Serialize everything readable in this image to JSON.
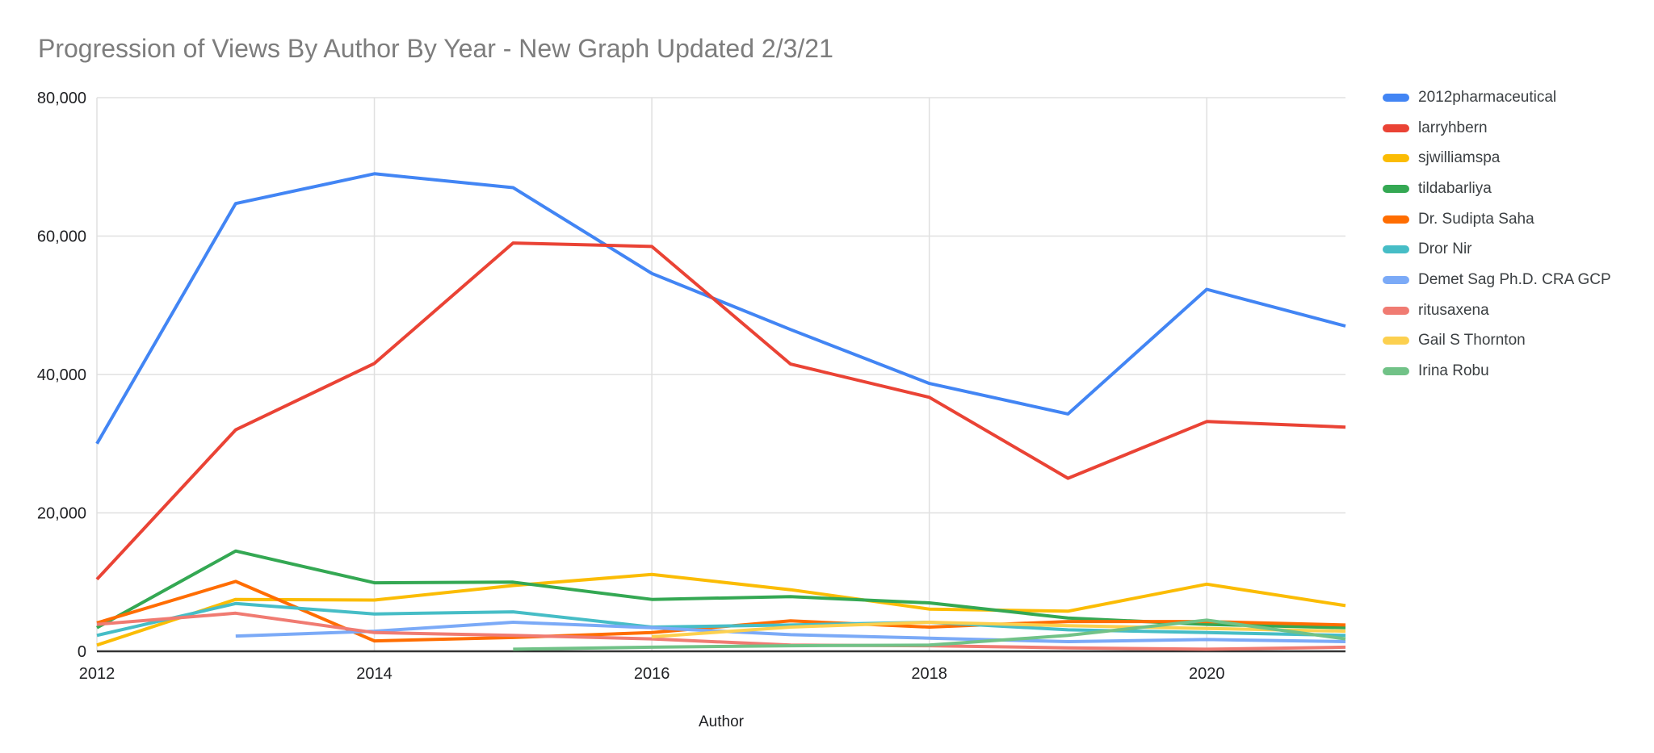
{
  "title": "Progression of Views By Author By Year - New Graph Updated 2/3/21",
  "chart_data": {
    "type": "line",
    "x": [
      2012,
      2013,
      2014,
      2015,
      2016,
      2017,
      2018,
      2019,
      2020,
      2021
    ],
    "xlabel": "Author",
    "ylabel": "",
    "ylim": [
      0,
      80000
    ],
    "yticks": [
      0,
      20000,
      40000,
      60000,
      80000
    ],
    "ytick_labels": [
      "0",
      "20,000",
      "40,000",
      "60,000",
      "80,000"
    ],
    "xticks": [
      2012,
      2014,
      2016,
      2018,
      2020
    ],
    "xtick_labels": [
      "2012",
      "2014",
      "2016",
      "2018",
      "2020"
    ],
    "grid": true,
    "legend_position": "right",
    "series": [
      {
        "name": "2012pharmaceutical",
        "color": "#4285F4",
        "values": [
          30000,
          64700,
          69000,
          67000,
          54600,
          46500,
          38700,
          34300,
          52300,
          47000
        ]
      },
      {
        "name": "larryhbern",
        "color": "#EA4335",
        "values": [
          10400,
          32000,
          41600,
          59000,
          58500,
          41500,
          36700,
          25000,
          33200,
          32400
        ]
      },
      {
        "name": "sjwilliamspa",
        "color": "#FBBC04",
        "values": [
          900,
          7500,
          7400,
          9500,
          11100,
          8900,
          6100,
          5800,
          9700,
          6600
        ]
      },
      {
        "name": "tildabarliya",
        "color": "#34A853",
        "values": [
          3400,
          14500,
          9900,
          10000,
          7500,
          7900,
          7000,
          4800,
          3900,
          3400
        ]
      },
      {
        "name": "Dr. Sudipta Saha",
        "color": "#FF6D01",
        "values": [
          4100,
          10100,
          1500,
          2000,
          2700,
          4400,
          3500,
          4300,
          4300,
          3800
        ]
      },
      {
        "name": "Dror Nir",
        "color": "#46BDC6",
        "values": [
          2300,
          6900,
          5400,
          5700,
          3500,
          3800,
          4200,
          3100,
          2700,
          2300
        ]
      },
      {
        "name": "Demet Sag Ph.D. CRA GCP",
        "color": "#7BAAF7",
        "values": [
          null,
          2200,
          2900,
          4200,
          3400,
          2400,
          1900,
          1400,
          1700,
          1400
        ]
      },
      {
        "name": "ritusaxena",
        "color": "#F07B72",
        "values": [
          3900,
          5500,
          2700,
          2300,
          1800,
          900,
          800,
          500,
          300,
          600
        ]
      },
      {
        "name": "Gail S Thornton",
        "color": "#FCD04F",
        "values": [
          null,
          null,
          null,
          null,
          2100,
          3500,
          4200,
          3700,
          3300,
          2900
        ]
      },
      {
        "name": "Irina Robu",
        "color": "#71C287",
        "values": [
          null,
          null,
          null,
          300,
          600,
          800,
          900,
          2300,
          4500,
          1800
        ]
      }
    ]
  },
  "styles": {
    "gridline_color": "#e0e0e0",
    "axis_line_color": "#333333",
    "tick_label_color": "#202124",
    "title_color": "#7d7d7d"
  }
}
